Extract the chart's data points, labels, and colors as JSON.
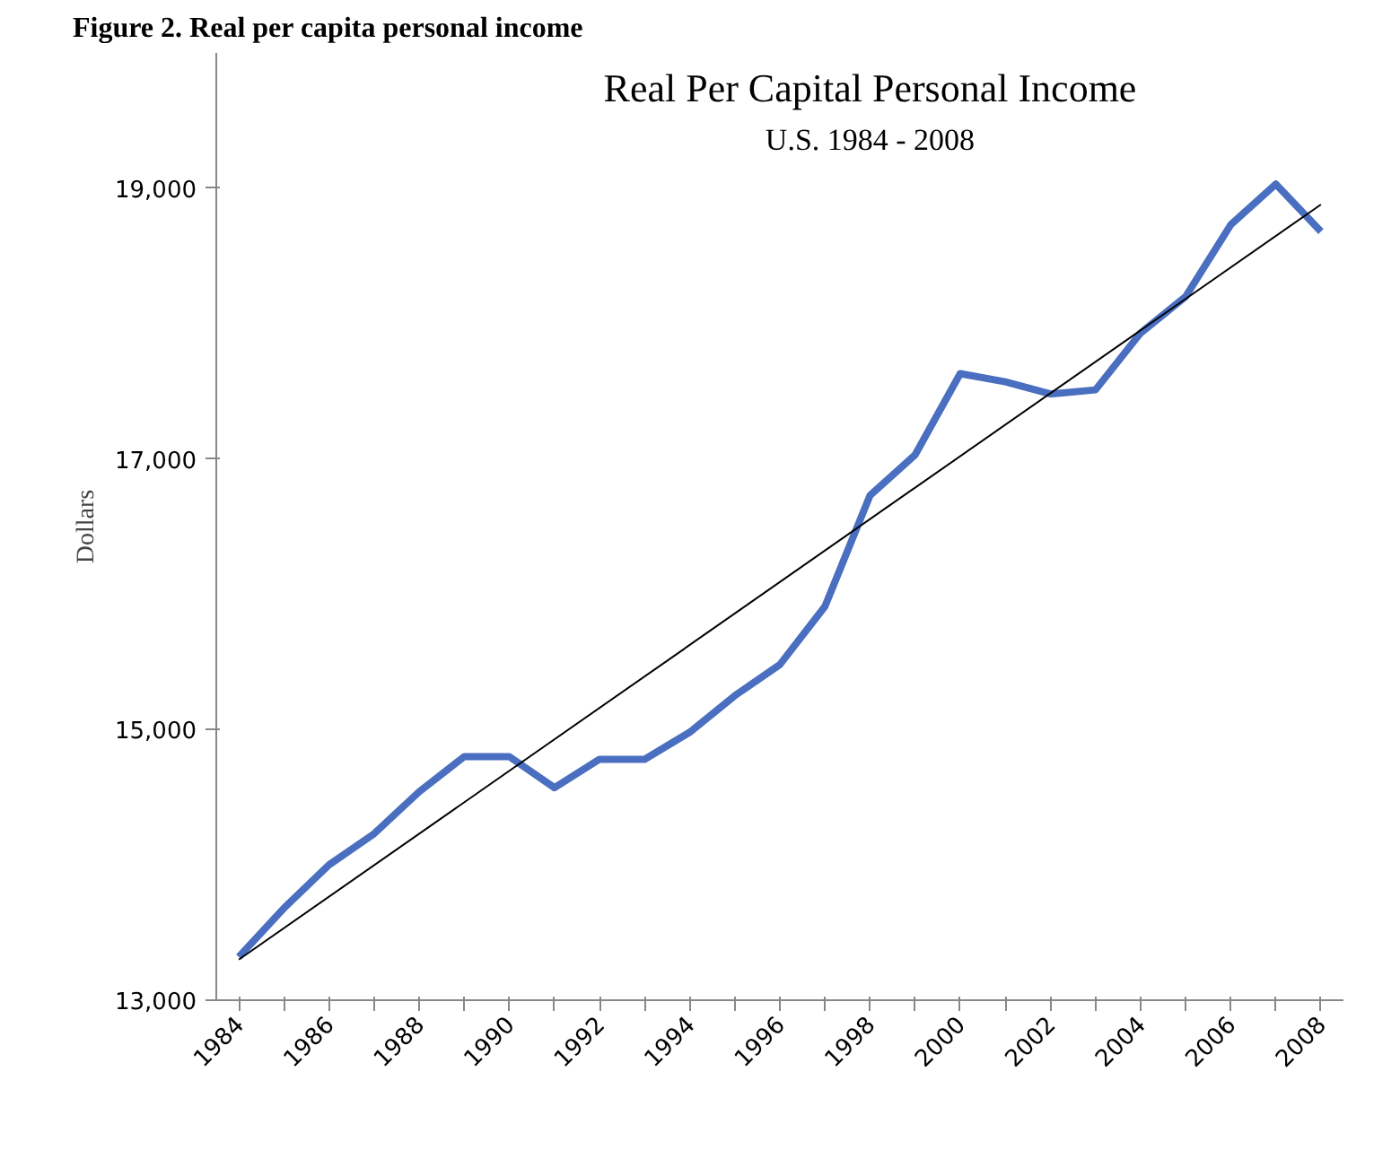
{
  "chart_data": {
    "type": "line",
    "title": "Figure 2. Real per capita personal income",
    "subtitle": "Real Per Capital Personal Income",
    "annotations": [
      "U.S. 1984 - 2008"
    ],
    "ylabel": "Dollars",
    "x": [
      1984,
      1985,
      1986,
      1987,
      1988,
      1989,
      1990,
      1991,
      1992,
      1993,
      1994,
      1995,
      1996,
      1997,
      1998,
      1999,
      2000,
      2001,
      2002,
      2003,
      2004,
      2005,
      2006,
      2007,
      2008
    ],
    "series": [
      {
        "color": "#4a6fc0",
        "values": [
          13320,
          13680,
          14000,
          14230,
          14540,
          14800,
          14800,
          14570,
          14780,
          14780,
          14980,
          15250,
          15480,
          15910,
          16730,
          17030,
          17630,
          17570,
          17480,
          17510,
          17930,
          18200,
          18730,
          19030,
          18680
        ]
      },
      {
        "color": "#000000",
        "x": [
          1984,
          2008
        ],
        "values": [
          13300,
          18880
        ]
      }
    ],
    "xlim": [
      1983.5,
      2008.5
    ],
    "ylim": [
      13000,
      20000
    ],
    "xticks": [
      1984,
      {
        "value": 1985,
        "label": null
      },
      1986,
      {
        "value": 1987,
        "label": null
      },
      1988,
      {
        "value": 1989,
        "label": null
      },
      1990,
      {
        "value": 1991,
        "label": null
      },
      1992,
      {
        "value": 1993,
        "label": null
      },
      1994,
      {
        "value": 1995,
        "label": null
      },
      1996,
      {
        "value": 1997,
        "label": null
      },
      1998,
      {
        "value": 1999,
        "label": null
      },
      2000,
      {
        "value": 2001,
        "label": null
      },
      2002,
      {
        "value": 2003,
        "label": null
      },
      2004,
      {
        "value": 2005,
        "label": null
      },
      2006,
      {
        "value": 2007,
        "label": null
      },
      2008
    ],
    "yticks": [
      {
        "value": 13000,
        "label": "13,000"
      },
      {
        "value": 15000,
        "label": "15,000"
      },
      {
        "value": 17000,
        "label": "17,000"
      },
      {
        "value": 19000,
        "label": "19,000"
      }
    ],
    "grid": false
  }
}
